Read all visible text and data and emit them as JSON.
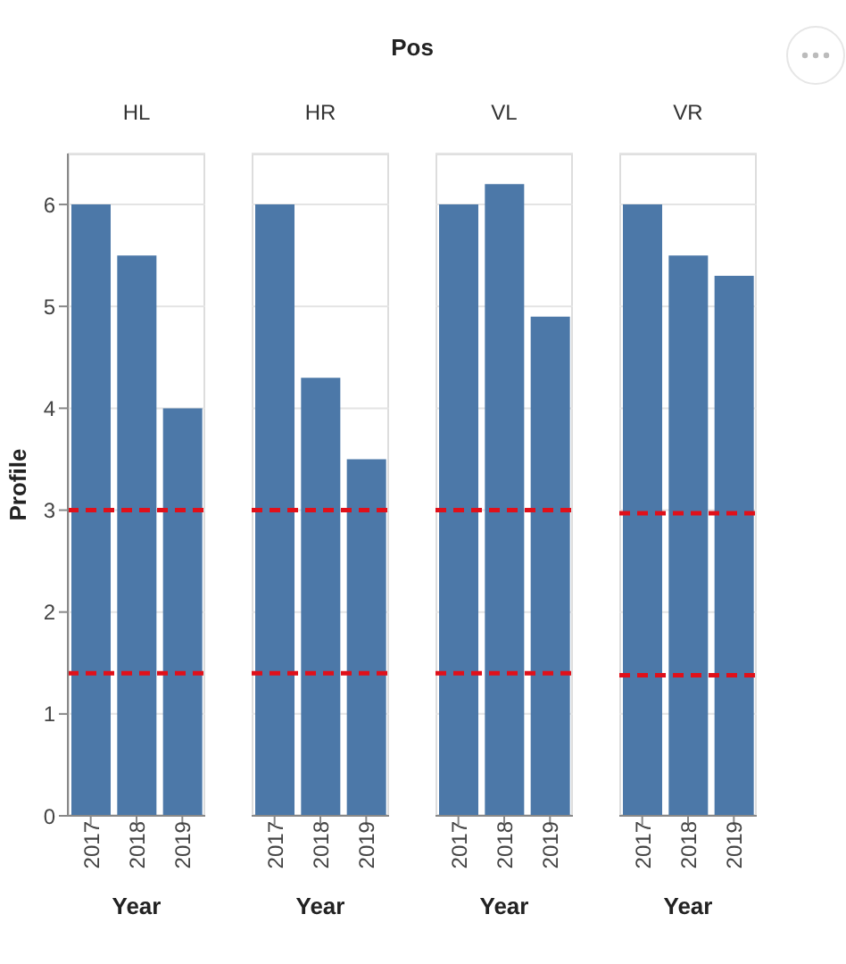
{
  "chart_data": [
    {
      "type": "bar",
      "title": "HL",
      "annotations": [
        "Pos"
      ],
      "categories": [
        "2017",
        "2018",
        "2019"
      ],
      "values": [
        6,
        5.5,
        4
      ],
      "color": "#4c78a8",
      "xlabel": "Year",
      "ylabel": "Profile",
      "ylim": [
        0,
        6.5
      ],
      "yticks": [
        0,
        1,
        2,
        3,
        4,
        5,
        6
      ],
      "grid": "y",
      "ref_lines": [
        {
          "axis": "y",
          "value": 3,
          "color": "#e0101a",
          "line_style": "dashed"
        },
        {
          "axis": "y",
          "value": 1.4,
          "color": "#e0101a",
          "line_style": "dashed"
        }
      ]
    },
    {
      "type": "bar",
      "title": "HR",
      "categories": [
        "2017",
        "2018",
        "2019"
      ],
      "values": [
        6,
        4.3,
        3.5
      ],
      "color": "#4c78a8",
      "xlabel": "Year",
      "ylim": [
        0,
        6.5
      ],
      "yticks": [
        0,
        1,
        2,
        3,
        4,
        5,
        6
      ],
      "grid": "y",
      "tick_labels": "x",
      "ref_lines": [
        {
          "axis": "y",
          "value": 3,
          "color": "#e0101a",
          "line_style": "dashed"
        },
        {
          "axis": "y",
          "value": 1.4,
          "color": "#e0101a",
          "line_style": "dashed"
        }
      ]
    },
    {
      "type": "bar",
      "title": "VL",
      "categories": [
        "2017",
        "2018",
        "2019"
      ],
      "values": [
        6,
        6.2,
        4.9
      ],
      "color": "#4c78a8",
      "xlabel": "Year",
      "ylim": [
        0,
        6.5
      ],
      "yticks": [
        0,
        1,
        2,
        3,
        4,
        5,
        6
      ],
      "grid": "y",
      "tick_labels": "x",
      "ref_lines": [
        {
          "axis": "y",
          "value": 3,
          "color": "#e0101a",
          "line_style": "dashed"
        },
        {
          "axis": "y",
          "value": 1.4,
          "color": "#e0101a",
          "line_style": "dashed"
        }
      ]
    },
    {
      "type": "bar",
      "title": "VR",
      "categories": [
        "2017",
        "2018",
        "2019"
      ],
      "values": [
        6,
        5.5,
        5.3
      ],
      "color": "#4c78a8",
      "xlabel": "Year",
      "ylim": [
        0,
        6.5
      ],
      "yticks": [
        0,
        1,
        2,
        3,
        4,
        5,
        6
      ],
      "grid": "y",
      "tick_labels": "x",
      "ref_lines": [
        {
          "axis": "y",
          "value": 2.97,
          "color": "#e0101a",
          "line_style": "dashed"
        },
        {
          "axis": "y",
          "value": 1.38,
          "color": "#e0101a",
          "line_style": "dashed"
        }
      ]
    }
  ]
}
